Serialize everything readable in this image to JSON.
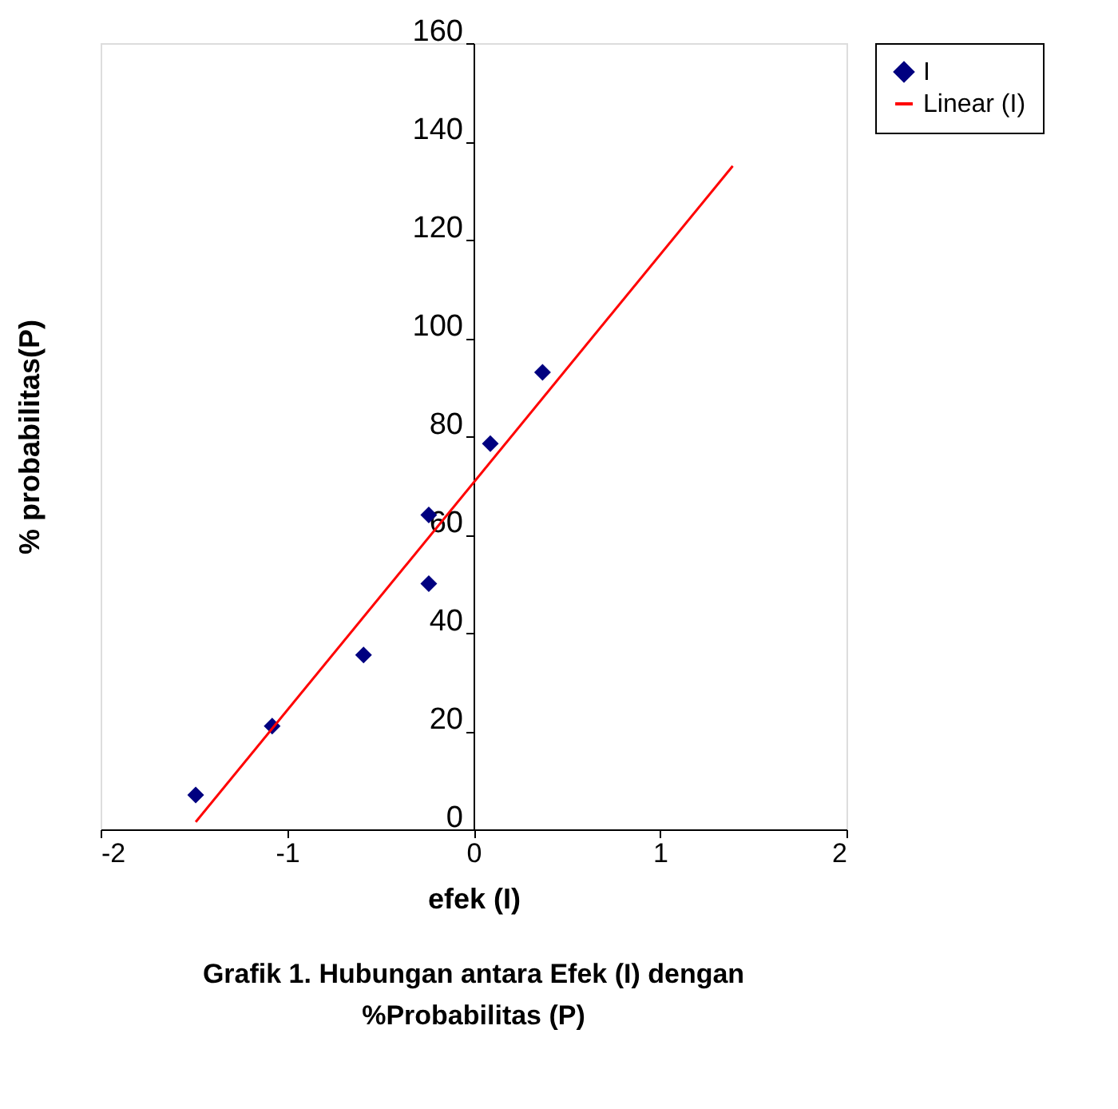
{
  "chart_data": {
    "type": "scatter",
    "title": "Grafik 1.  Hubungan antara Efek (I) dengan %Probabilitas (P)",
    "xlabel": "efek (I)",
    "ylabel": "% probabilitas(P)",
    "xlim": [
      -2,
      2
    ],
    "xticks": [
      -2,
      -1,
      0,
      1,
      2
    ],
    "ylim": [
      0,
      160
    ],
    "yticks": [
      0,
      20,
      40,
      60,
      80,
      100,
      120,
      140,
      160
    ],
    "grid": false,
    "legend": "right",
    "series": [
      {
        "name": "I",
        "marker": "diamond",
        "color": "#000080",
        "x": [
          -1.49,
          -1.08,
          -0.59,
          -0.24,
          -0.24,
          0.09,
          0.37
        ],
        "values": [
          7,
          21,
          35.5,
          64,
          50,
          78.5,
          93
        ]
      },
      {
        "name": "Linear (I)",
        "type": "line",
        "color": "#ff0000",
        "line_style": "solid",
        "x": [
          -1.49,
          1.39
        ],
        "values": [
          1.5,
          135
        ]
      }
    ]
  }
}
